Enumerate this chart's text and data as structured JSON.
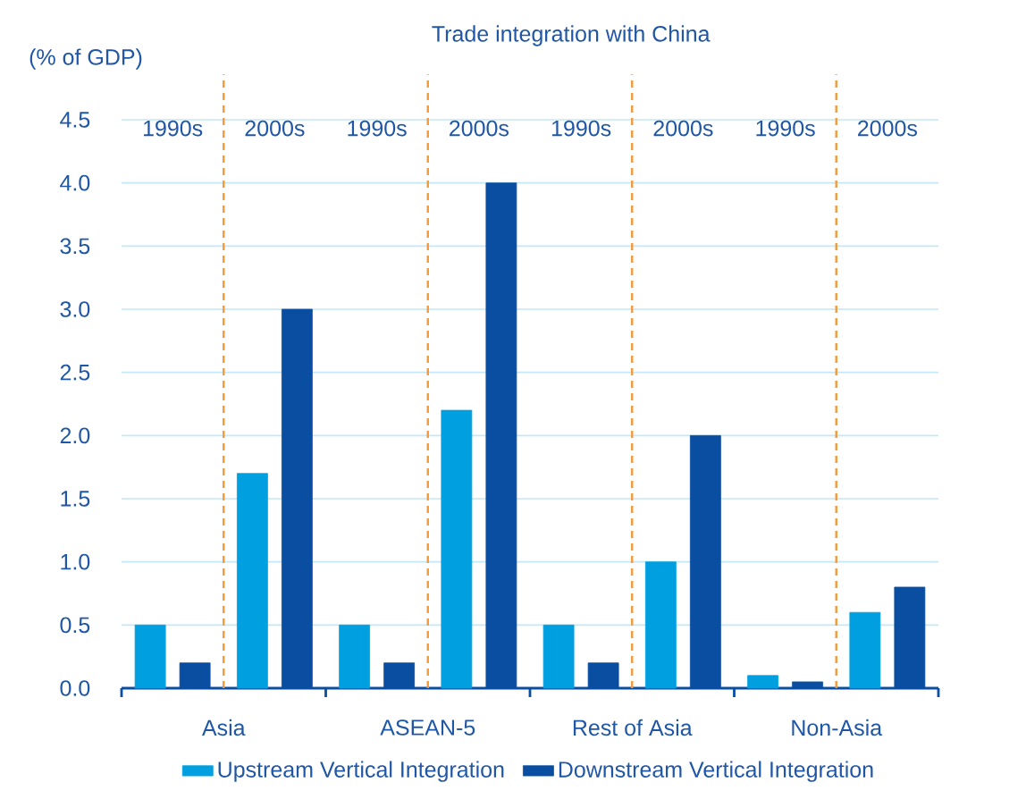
{
  "chart_data": {
    "type": "bar",
    "title": "Trade integration with China",
    "ylabel": "(% of GDP)",
    "categories": [
      "1990s",
      "2000s",
      "1990s",
      "2000s",
      "1990s",
      "2000s",
      "1990s",
      "2000s"
    ],
    "series": [
      {
        "name": "Upstream Vertical Integration",
        "color": "#00a0e0",
        "values": [
          0.5,
          1.7,
          0.5,
          2.2,
          0.5,
          1.0,
          0.1,
          0.6
        ]
      },
      {
        "name": "Downstream Vertical Integration",
        "color": "#0a4ea2",
        "values": [
          0.2,
          3.0,
          0.2,
          4.0,
          0.2,
          2.0,
          0.05,
          0.8
        ]
      }
    ],
    "ylim": [
      0,
      4.5
    ],
    "yticks": [
      {
        "value": 0,
        "label": "0.0"
      },
      {
        "value": 0.5,
        "label": "0.5"
      },
      {
        "value": 1,
        "label": "1.0"
      },
      {
        "value": 1.5,
        "label": "1.5"
      },
      {
        "value": 2,
        "label": "2.0"
      },
      {
        "value": 2.5,
        "label": "2.5"
      },
      {
        "value": 3,
        "label": "3.0"
      },
      {
        "value": 3.5,
        "label": "3.5"
      },
      {
        "value": 4,
        "label": "4.0"
      },
      {
        "value": 4.5,
        "label": "4.5"
      }
    ],
    "annotations": [
      "Asia",
      "ASEAN-5",
      "Rest of Asia",
      "Non-Asia"
    ],
    "grid": "y",
    "legend": "bottom"
  }
}
